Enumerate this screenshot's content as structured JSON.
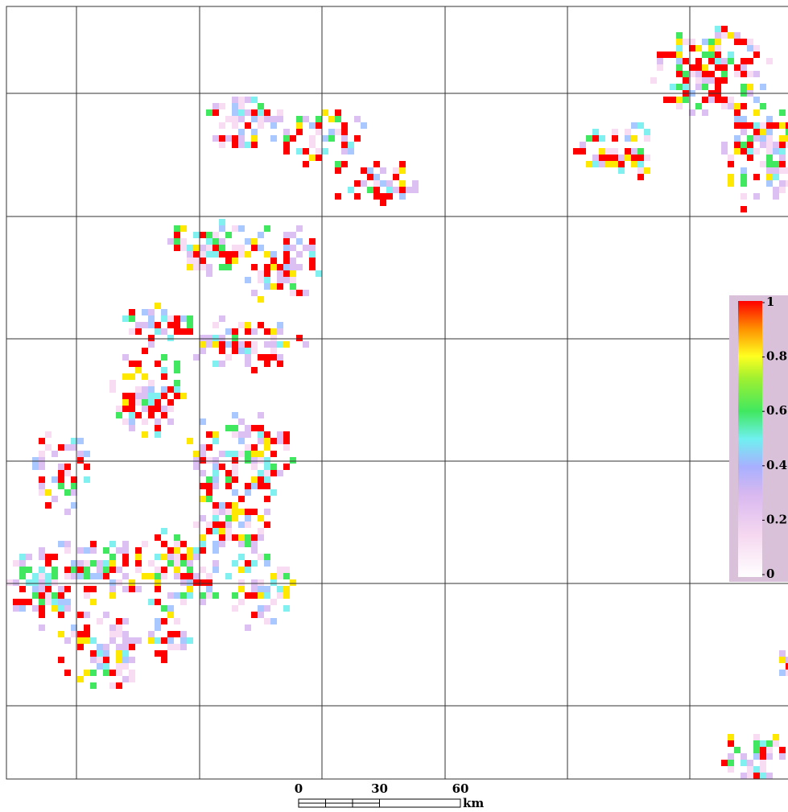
{
  "legend": {
    "ticks": [
      1,
      0.8,
      0.6,
      0.4,
      0.2,
      0
    ]
  },
  "scale_bar": {
    "ticks": [
      0,
      30,
      60
    ],
    "unit": "km"
  }
}
